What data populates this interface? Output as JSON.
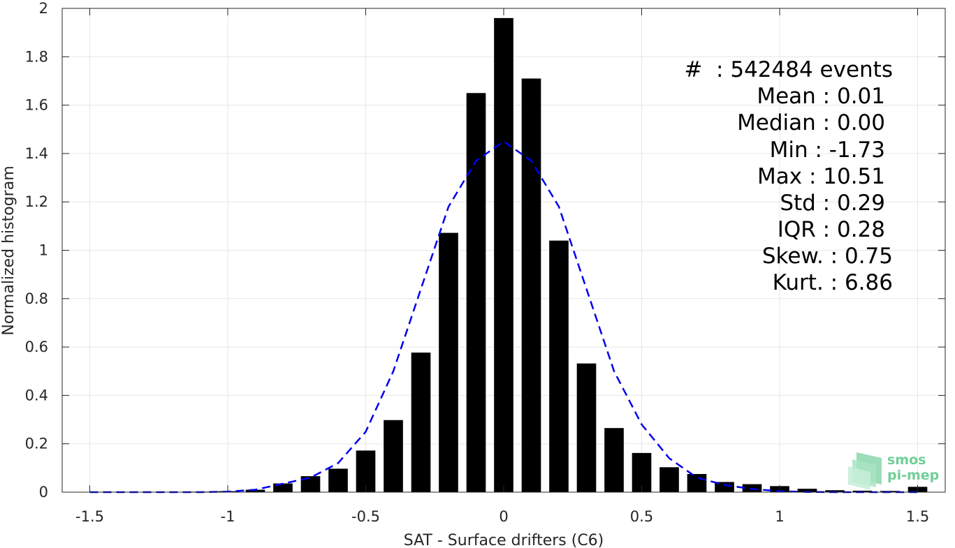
{
  "chart_data": {
    "type": "bar",
    "xlabel": "SAT - Surface drifters (C6)",
    "ylabel": "Normalized histogram",
    "xlim": [
      -1.6,
      1.6
    ],
    "ylim": [
      0,
      2
    ],
    "grid": true,
    "x_ticks": [
      -1.5,
      -1,
      -0.5,
      0,
      0.5,
      1,
      1.5
    ],
    "x_tick_labels": [
      "-1.5",
      "-1",
      "-0.5",
      "0",
      "0.5",
      "1",
      "1.5"
    ],
    "y_ticks": [
      0,
      0.2,
      0.4,
      0.6,
      0.8,
      1,
      1.2,
      1.4,
      1.6,
      1.8,
      2
    ],
    "y_tick_labels": [
      "0",
      "0.2",
      "0.4",
      "0.6",
      "0.8",
      "1",
      "1.2",
      "1.4",
      "1.6",
      "1.8",
      "2"
    ],
    "bar_color": "#000000",
    "bar_width": 0.07,
    "series": [
      {
        "values_x": [
          -1.5,
          -1.4,
          -1.3,
          -1.2,
          -1.1,
          -1.0,
          -0.9,
          -0.8,
          -0.7,
          -0.6,
          -0.5,
          -0.4,
          -0.3,
          -0.2,
          -0.1,
          0.0,
          0.1,
          0.2,
          0.3,
          0.4,
          0.5,
          0.6,
          0.7,
          0.8,
          0.9,
          1.0,
          1.1,
          1.2,
          1.3,
          1.4,
          1.5
        ],
        "values": [
          0.001,
          0.001,
          0.001,
          0.001,
          0.002,
          0.004,
          0.01,
          0.036,
          0.066,
          0.097,
          0.172,
          0.298,
          0.577,
          1.072,
          1.65,
          1.96,
          1.71,
          1.04,
          0.532,
          0.265,
          0.162,
          0.103,
          0.075,
          0.042,
          0.033,
          0.025,
          0.014,
          0.008,
          0.006,
          0.005,
          0.022
        ]
      }
    ],
    "fit_curve": {
      "style": "dashed",
      "color": "#0000ee",
      "x": [
        -1.5,
        -1.4,
        -1.3,
        -1.2,
        -1.1,
        -1.0,
        -0.9,
        -0.8,
        -0.7,
        -0.6,
        -0.5,
        -0.4,
        -0.3,
        -0.2,
        -0.1,
        0.0,
        0.1,
        0.2,
        0.3,
        0.4,
        0.5,
        0.6,
        0.7,
        0.8,
        0.9,
        1.0,
        1.1,
        1.2,
        1.3,
        1.4,
        1.5
      ],
      "y": [
        0.0,
        0.0,
        0.0,
        0.0,
        0.0,
        0.002,
        0.01,
        0.035,
        0.06,
        0.12,
        0.25,
        0.5,
        0.84,
        1.18,
        1.37,
        1.45,
        1.37,
        1.18,
        0.84,
        0.5,
        0.28,
        0.14,
        0.06,
        0.03,
        0.013,
        0.004,
        0.001,
        0.0,
        0.0,
        0.0,
        0.0
      ]
    },
    "annotations": [
      "#  : 542484 events",
      "Mean : 0.01",
      "Median : 0.00",
      "Min : -1.73",
      "Max : 10.51",
      "Std : 0.29",
      "IQR : 0.28",
      "Skew. : 0.75",
      "Kurt. : 6.86"
    ]
  },
  "logo": {
    "line1": "smos",
    "line2": "pi-mep",
    "color": "#6fcf97"
  }
}
